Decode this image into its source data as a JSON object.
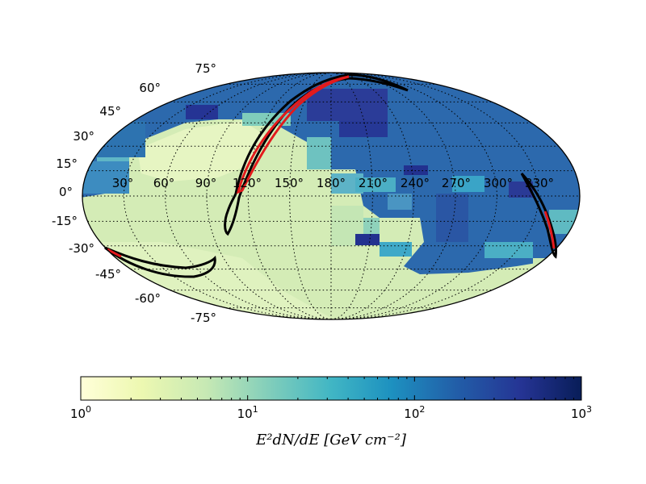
{
  "chart_data": {
    "type": "heatmap",
    "projection": "mollweide",
    "title": "",
    "longitude_tick_labels": [
      "30°",
      "60°",
      "90°",
      "120°",
      "150°",
      "180°",
      "210°",
      "240°",
      "270°",
      "300°",
      "330°"
    ],
    "latitude_tick_labels": [
      "75°",
      "60°",
      "45°",
      "30°",
      "15°",
      "0°",
      "-15°",
      "-30°",
      "-45°",
      "-60°",
      "-75°"
    ],
    "colorbar": {
      "label": "E²dN/dE [GeV cm⁻²]",
      "scale": "log",
      "range": [
        1,
        1000
      ],
      "ticks": [
        {
          "base": "10",
          "exp": "0"
        },
        {
          "base": "10",
          "exp": "1"
        },
        {
          "base": "10",
          "exp": "2"
        },
        {
          "base": "10",
          "exp": "3"
        }
      ]
    },
    "colors": {
      "low": "#ffffd9",
      "mid": "#41b6c4",
      "high": "#081d58",
      "contour": "#000000",
      "inner_region": "#e31a1c"
    },
    "grid": "dotted",
    "overlays": [
      "black contour bands",
      "red inner regions"
    ]
  }
}
